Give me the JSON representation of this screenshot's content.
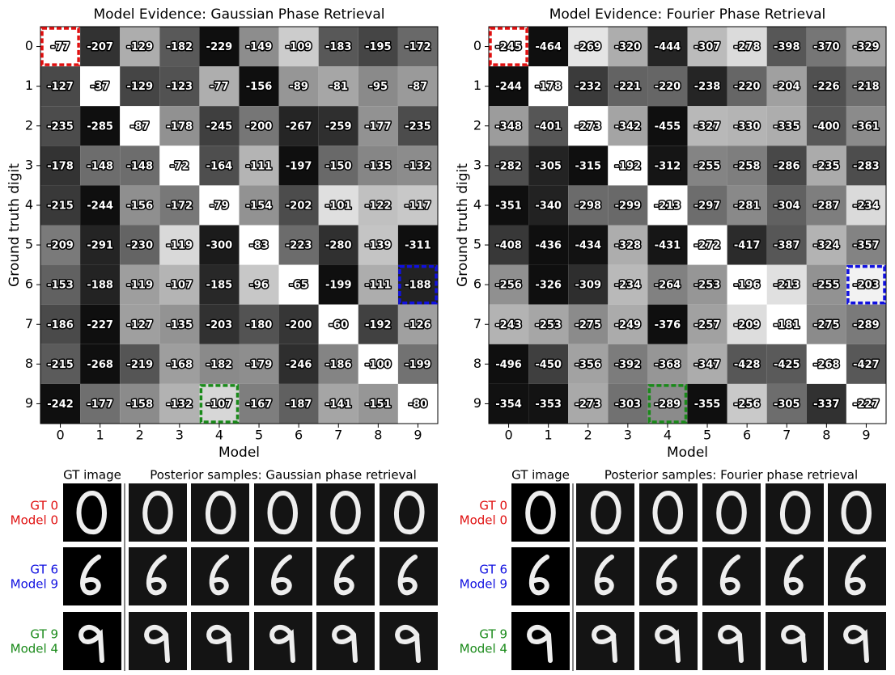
{
  "chart_data": [
    {
      "type": "heatmap",
      "title": "Model Evidence: Gaussian Phase Retrieval",
      "xlabel": "Model",
      "ylabel": "Ground truth digit",
      "xlim": [
        -0.5,
        9.5
      ],
      "ylim": [
        9.5,
        -0.5
      ],
      "xticks": [
        0,
        1,
        2,
        3,
        4,
        5,
        6,
        7,
        8,
        9
      ],
      "yticks": [
        0,
        1,
        2,
        3,
        4,
        5,
        6,
        7,
        8,
        9
      ],
      "values": [
        [
          -77,
          -207,
          -129,
          -182,
          -229,
          -149,
          -109,
          -183,
          -195,
          -172
        ],
        [
          -127,
          -37,
          -129,
          -123,
          -77,
          -156,
          -89,
          -81,
          -95,
          -87
        ],
        [
          -235,
          -285,
          -87,
          -178,
          -245,
          -200,
          -267,
          -259,
          -177,
          -235
        ],
        [
          -178,
          -148,
          -148,
          -72,
          -164,
          -111,
          -197,
          -150,
          -135,
          -132
        ],
        [
          -215,
          -244,
          -156,
          -172,
          -79,
          -154,
          -202,
          -101,
          -122,
          -117
        ],
        [
          -209,
          -291,
          -230,
          -119,
          -300,
          -83,
          -223,
          -280,
          -139,
          -311
        ],
        [
          -153,
          -188,
          -119,
          -107,
          -185,
          -96,
          -65,
          -199,
          -111,
          -188
        ],
        [
          -186,
          -227,
          -127,
          -135,
          -203,
          -180,
          -200,
          -60,
          -192,
          -126
        ],
        [
          -215,
          -268,
          -219,
          -168,
          -182,
          -179,
          -246,
          -186,
          -100,
          -199
        ],
        [
          -242,
          -177,
          -158,
          -132,
          -107,
          -167,
          -187,
          -141,
          -151,
          -80
        ]
      ],
      "highlights": [
        {
          "row": 0,
          "col": 0,
          "color": "#e01010"
        },
        {
          "row": 6,
          "col": 9,
          "color": "#1010e0"
        },
        {
          "row": 9,
          "col": 4,
          "color": "#1a8a1a"
        }
      ]
    },
    {
      "type": "heatmap",
      "title": "Model Evidence: Fourier Phase Retrieval",
      "xlabel": "Model",
      "ylabel": "Ground truth digit",
      "xlim": [
        -0.5,
        9.5
      ],
      "ylim": [
        9.5,
        -0.5
      ],
      "xticks": [
        0,
        1,
        2,
        3,
        4,
        5,
        6,
        7,
        8,
        9
      ],
      "yticks": [
        0,
        1,
        2,
        3,
        4,
        5,
        6,
        7,
        8,
        9
      ],
      "values": [
        [
          -245,
          -464,
          -269,
          -320,
          -444,
          -307,
          -278,
          -398,
          -370,
          -329
        ],
        [
          -244,
          -178,
          -232,
          -221,
          -220,
          -238,
          -220,
          -204,
          -226,
          -218
        ],
        [
          -348,
          -401,
          -273,
          -342,
          -455,
          -327,
          -330,
          -335,
          -400,
          -361
        ],
        [
          -282,
          -305,
          -315,
          -192,
          -312,
          -255,
          -258,
          -286,
          -235,
          -283
        ],
        [
          -351,
          -340,
          -298,
          -299,
          -213,
          -297,
          -281,
          -304,
          -287,
          -234
        ],
        [
          -408,
          -436,
          -434,
          -328,
          -431,
          -272,
          -417,
          -387,
          -324,
          -357
        ],
        [
          -256,
          -326,
          -309,
          -234,
          -264,
          -253,
          -196,
          -213,
          -255,
          -203
        ],
        [
          -243,
          -253,
          -275,
          -249,
          -376,
          -257,
          -209,
          -181,
          -275,
          -289
        ],
        [
          -496,
          -450,
          -356,
          -392,
          -368,
          -347,
          -428,
          -425,
          -268,
          -427
        ],
        [
          -354,
          -353,
          -273,
          -303,
          -289,
          -355,
          -256,
          -305,
          -337,
          -227
        ]
      ],
      "highlights": [
        {
          "row": 0,
          "col": 0,
          "color": "#e01010"
        },
        {
          "row": 6,
          "col": 9,
          "color": "#1010e0"
        },
        {
          "row": 9,
          "col": 4,
          "color": "#1a8a1a"
        }
      ]
    }
  ],
  "sample_panels": [
    {
      "gt_header": "GT image",
      "samples_header": "Posterior samples: Gaussian phase retrieval",
      "rows": [
        {
          "gt": "GT 0",
          "model": "Model 0",
          "color": "#e01010"
        },
        {
          "gt": "GT 6",
          "model": "Model 9",
          "color": "#1010e0"
        },
        {
          "gt": "GT 9",
          "model": "Model 4",
          "color": "#1a8a1a"
        }
      ]
    },
    {
      "gt_header": "GT image",
      "samples_header": "Posterior samples: Fourier phase retrieval",
      "rows": [
        {
          "gt": "GT 0",
          "model": "Model 0",
          "color": "#e01010"
        },
        {
          "gt": "GT 6",
          "model": "Model 9",
          "color": "#1010e0"
        },
        {
          "gt": "GT 9",
          "model": "Model 4",
          "color": "#1a8a1a"
        }
      ]
    }
  ]
}
